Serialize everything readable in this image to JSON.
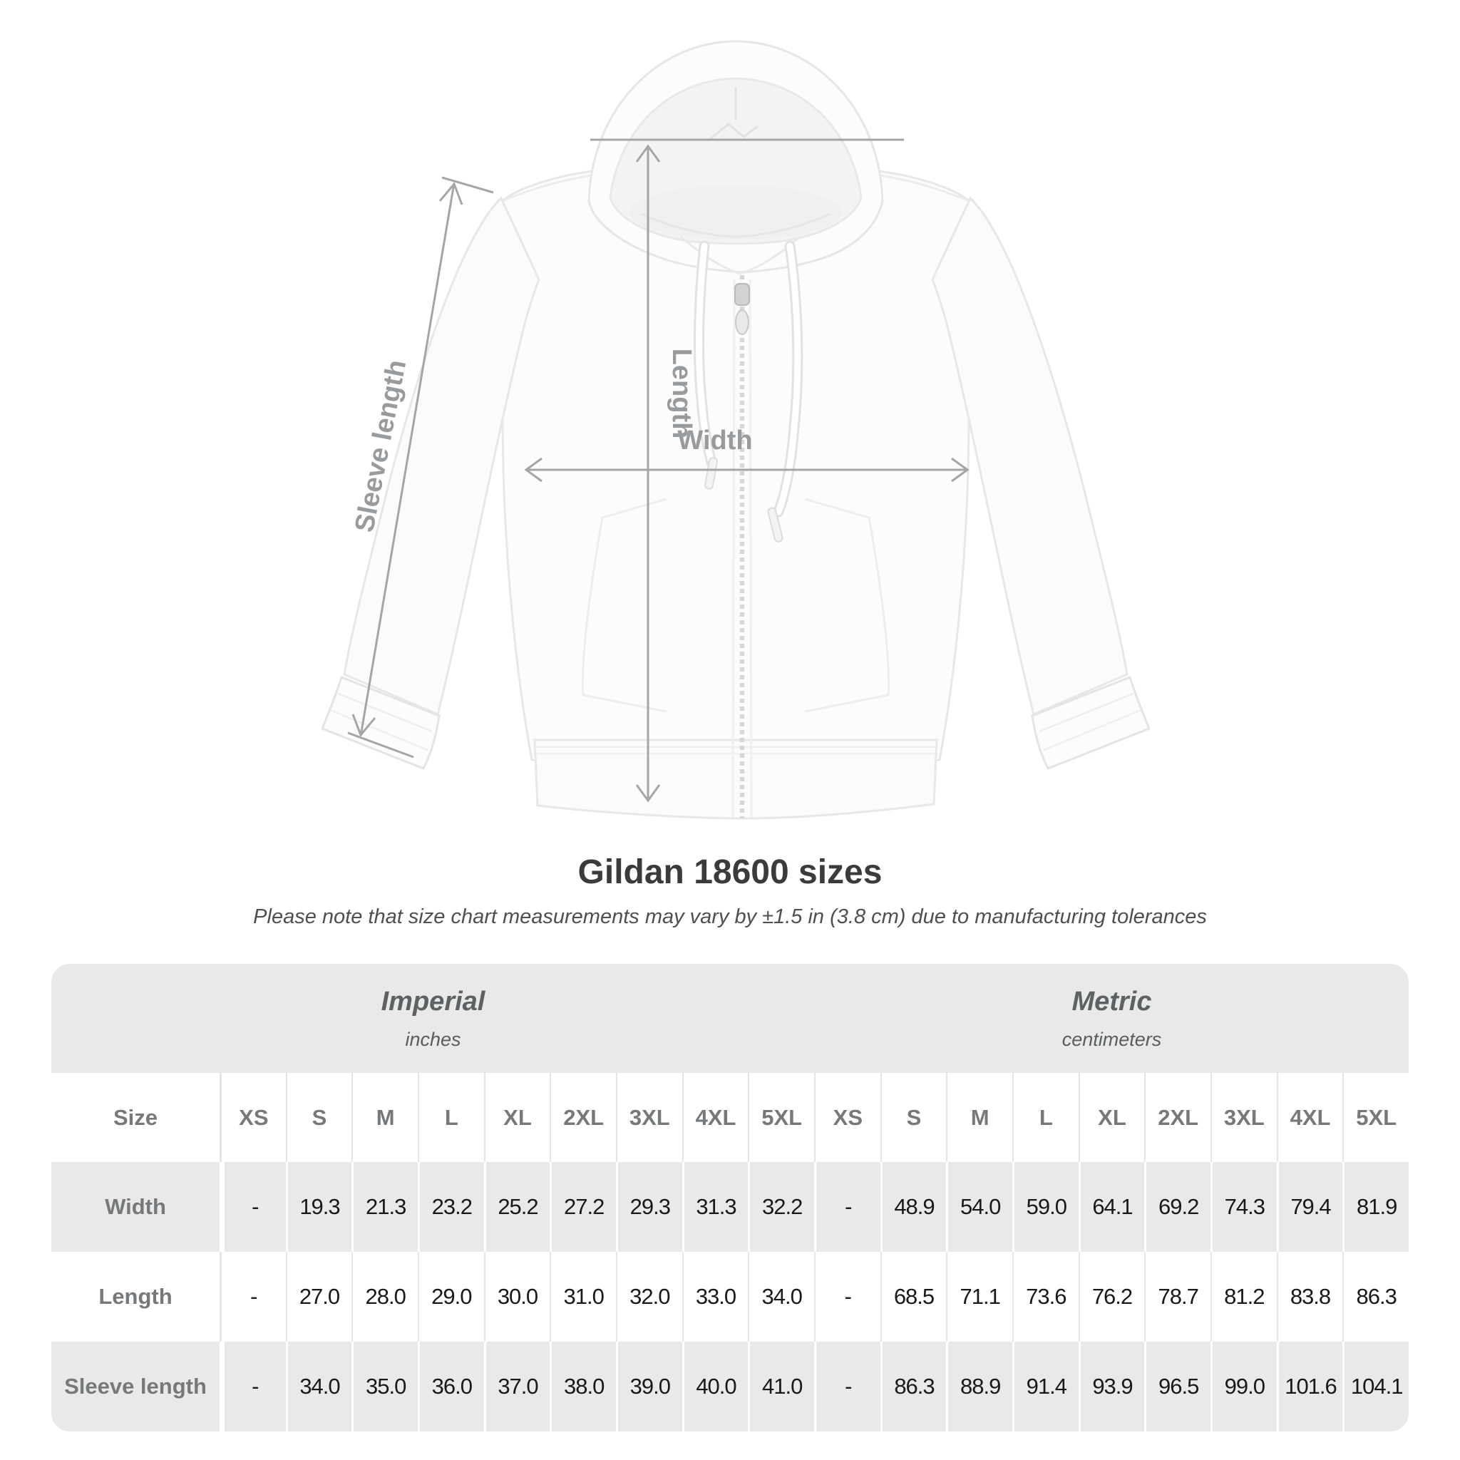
{
  "title": "Gildan 18600 sizes",
  "subtitle": "Please note that size chart measurements may vary by ±1.5 in (3.8 cm) due to manufacturing tolerances",
  "diagram": {
    "labels": {
      "length": "Length",
      "width": "Width",
      "sleeve": "Sleeve length"
    }
  },
  "table": {
    "size_header": "Size",
    "unit_groups": [
      {
        "name": "Imperial",
        "unit": "inches"
      },
      {
        "name": "Metric",
        "unit": "centimeters"
      }
    ],
    "sizes": [
      "XS",
      "S",
      "M",
      "L",
      "XL",
      "2XL",
      "3XL",
      "4XL",
      "5XL"
    ],
    "rows": [
      {
        "label": "Width",
        "imperial": [
          "-",
          "19.3",
          "21.3",
          "23.2",
          "25.2",
          "27.2",
          "29.3",
          "31.3",
          "32.2"
        ],
        "metric": [
          "-",
          "48.9",
          "54.0",
          "59.0",
          "64.1",
          "69.2",
          "74.3",
          "79.4",
          "81.9"
        ]
      },
      {
        "label": "Length",
        "imperial": [
          "-",
          "27.0",
          "28.0",
          "29.0",
          "30.0",
          "31.0",
          "32.0",
          "33.0",
          "34.0"
        ],
        "metric": [
          "-",
          "68.5",
          "71.1",
          "73.6",
          "76.2",
          "78.7",
          "81.2",
          "83.8",
          "86.3"
        ]
      },
      {
        "label": "Sleeve length",
        "imperial": [
          "-",
          "34.0",
          "35.0",
          "36.0",
          "37.0",
          "38.0",
          "39.0",
          "40.0",
          "41.0"
        ],
        "metric": [
          "-",
          "86.3",
          "88.9",
          "91.4",
          "93.9",
          "96.5",
          "99.0",
          "101.6",
          "104.1"
        ]
      }
    ]
  },
  "colors": {
    "row_stripe": "#e9e9e9",
    "measure_line": "#a3a6a8",
    "measure_label": "#989b9d",
    "value_text": "#191919",
    "header_text": "#75797c",
    "title_text": "#3b3b3b"
  }
}
